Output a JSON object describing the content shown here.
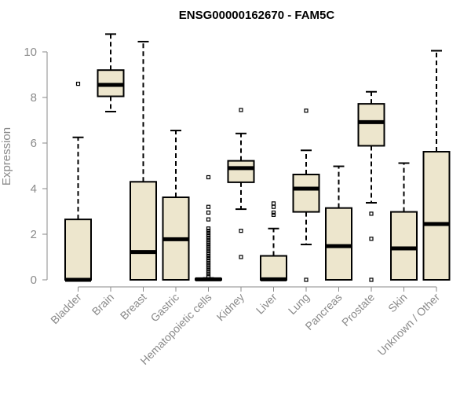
{
  "chart_data": {
    "type": "box",
    "title": "ENSG00000162670 - FAM5C",
    "ylabel": "Expression",
    "xlabel": "",
    "ylim": [
      0,
      10.8
    ],
    "yticks": [
      0,
      2,
      4,
      6,
      8,
      10
    ],
    "ytick_labels": [
      "0",
      "2",
      "4",
      "6",
      "8",
      "10"
    ],
    "box_fill": "#ede6cd",
    "box_stroke": "#000000",
    "axis_color": "#8a8a8a",
    "categories": [
      "Bladder",
      "Brain",
      "Breast",
      "Gastric",
      "Hematopoietic cells",
      "Kidney",
      "Liver",
      "Lung",
      "Pancreas",
      "Prostate",
      "Skin",
      "Unknown / Other"
    ],
    "boxes": [
      {
        "q1": 0,
        "median": 0,
        "q3": 2.65,
        "whisker_low": 0,
        "whisker_high": 6.25,
        "outliers": [
          8.6
        ]
      },
      {
        "q1": 8.05,
        "median": 8.55,
        "q3": 9.2,
        "whisker_low": 7.38,
        "whisker_high": 10.78,
        "outliers": []
      },
      {
        "q1": 0,
        "median": 1.22,
        "q3": 4.3,
        "whisker_low": 0,
        "whisker_high": 10.45,
        "outliers": []
      },
      {
        "q1": 0,
        "median": 1.78,
        "q3": 3.62,
        "whisker_low": 0,
        "whisker_high": 6.55,
        "outliers": []
      },
      {
        "q1": 0,
        "median": 0.02,
        "q3": 0.05,
        "whisker_low": 0,
        "whisker_high": 0.08,
        "outliers": [
          0.15,
          0.25,
          0.35,
          0.45,
          0.55,
          0.65,
          0.75,
          0.85,
          0.95,
          1.05,
          1.15,
          1.25,
          1.35,
          1.45,
          1.55,
          1.65,
          1.75,
          1.85,
          1.95,
          2.05,
          2.15,
          2.25,
          2.65,
          2.95,
          3.2,
          4.5
        ]
      },
      {
        "q1": 4.28,
        "median": 4.9,
        "q3": 5.22,
        "whisker_low": 3.1,
        "whisker_high": 6.42,
        "outliers": [
          7.45,
          2.15,
          1.0
        ]
      },
      {
        "q1": 0,
        "median": 0.02,
        "q3": 1.05,
        "whisker_low": 0,
        "whisker_high": 2.25,
        "outliers": [
          3.35,
          3.2,
          2.95,
          2.85
        ]
      },
      {
        "q1": 2.98,
        "median": 4.0,
        "q3": 4.62,
        "whisker_low": 1.55,
        "whisker_high": 5.68,
        "outliers": [
          7.42,
          0.0
        ]
      },
      {
        "q1": 0,
        "median": 1.48,
        "q3": 3.15,
        "whisker_low": 0,
        "whisker_high": 4.98,
        "outliers": []
      },
      {
        "q1": 5.88,
        "median": 6.92,
        "q3": 7.72,
        "whisker_low": 3.38,
        "whisker_high": 8.25,
        "outliers": [
          2.9,
          1.8,
          0.0
        ]
      },
      {
        "q1": 0,
        "median": 1.38,
        "q3": 2.98,
        "whisker_low": 0,
        "whisker_high": 5.12,
        "outliers": []
      },
      {
        "q1": 0,
        "median": 2.45,
        "q3": 5.62,
        "whisker_low": 0,
        "whisker_high": 10.05,
        "outliers": []
      }
    ]
  }
}
